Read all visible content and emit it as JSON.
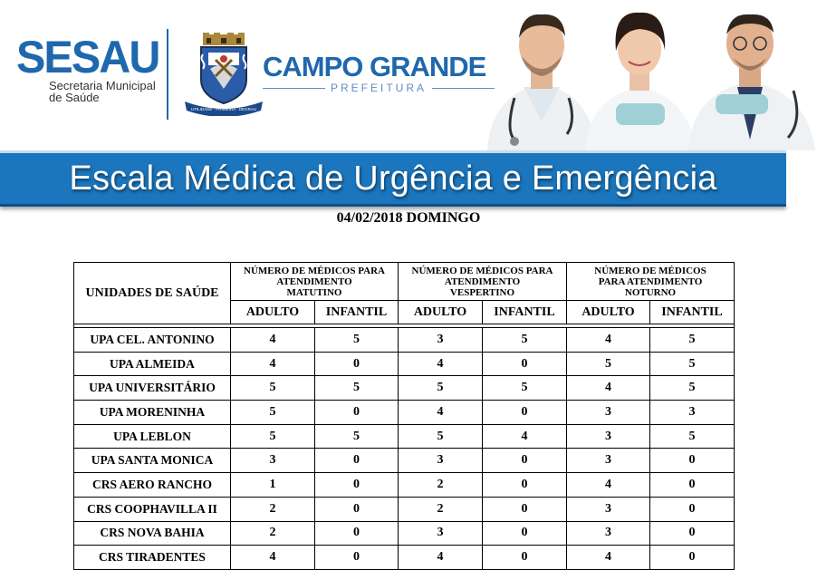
{
  "header": {
    "sesau_logo": "SESAU",
    "sesau_subtitle_line1": "Secretaria Municipal",
    "sesau_subtitle_line2": "de Saúde",
    "city_name": "CAMPO GRANDE",
    "city_subtitle": "PREFEITURA",
    "crest_motto": "UTILIDADE · PRIMEIRA · DEGRAU"
  },
  "banner": {
    "title": "Escala Médica de Urgência e Emergência"
  },
  "date_line": "04/02/2018 DOMINGO",
  "table": {
    "unit_header": "UNIDADES DE SAÚDE",
    "groups": [
      {
        "line1": "NÚMERO DE MÉDICOS PARA",
        "line2": "ATENDIMENTO",
        "line3": "MATUTINO"
      },
      {
        "line1": "NÚMERO DE MÉDICOS PARA",
        "line2": "ATENDIMENTO",
        "line3": "VESPERTINO"
      },
      {
        "line1": "NÚMERO DE MÉDICOS",
        "line2": "PARA ATENDIMENTO",
        "line3": "NOTURNO"
      }
    ],
    "sub_headers": [
      "ADULTO",
      "INFANTIL",
      "ADULTO",
      "INFANTIL",
      "ADULTO",
      "INFANTIL"
    ],
    "rows": [
      {
        "unit": "UPA CEL. ANTONINO",
        "values": [
          "4",
          "5",
          "3",
          "5",
          "4",
          "5"
        ]
      },
      {
        "unit": "UPA ALMEIDA",
        "values": [
          "4",
          "0",
          "4",
          "0",
          "5",
          "5"
        ]
      },
      {
        "unit": "UPA UNIVERSITÁRIO",
        "values": [
          "5",
          "5",
          "5",
          "5",
          "4",
          "5"
        ]
      },
      {
        "unit": "UPA MORENINHA",
        "values": [
          "5",
          "0",
          "4",
          "0",
          "3",
          "3"
        ]
      },
      {
        "unit": "UPA LEBLON",
        "values": [
          "5",
          "5",
          "5",
          "4",
          "3",
          "5"
        ]
      },
      {
        "unit": "UPA SANTA MONICA",
        "values": [
          "3",
          "0",
          "3",
          "0",
          "3",
          "0"
        ]
      },
      {
        "unit": "CRS AERO RANCHO",
        "values": [
          "1",
          "0",
          "2",
          "0",
          "4",
          "0"
        ]
      },
      {
        "unit": "CRS COOPHAVILLA II",
        "values": [
          "2",
          "0",
          "2",
          "0",
          "3",
          "0"
        ]
      },
      {
        "unit": "CRS NOVA BAHIA",
        "values": [
          "2",
          "0",
          "3",
          "0",
          "3",
          "0"
        ]
      },
      {
        "unit": "CRS TIRADENTES",
        "values": [
          "4",
          "0",
          "4",
          "0",
          "4",
          "0"
        ]
      }
    ]
  },
  "colors": {
    "brand_blue": "#1f68ad",
    "banner_blue": "#1b76bd"
  }
}
